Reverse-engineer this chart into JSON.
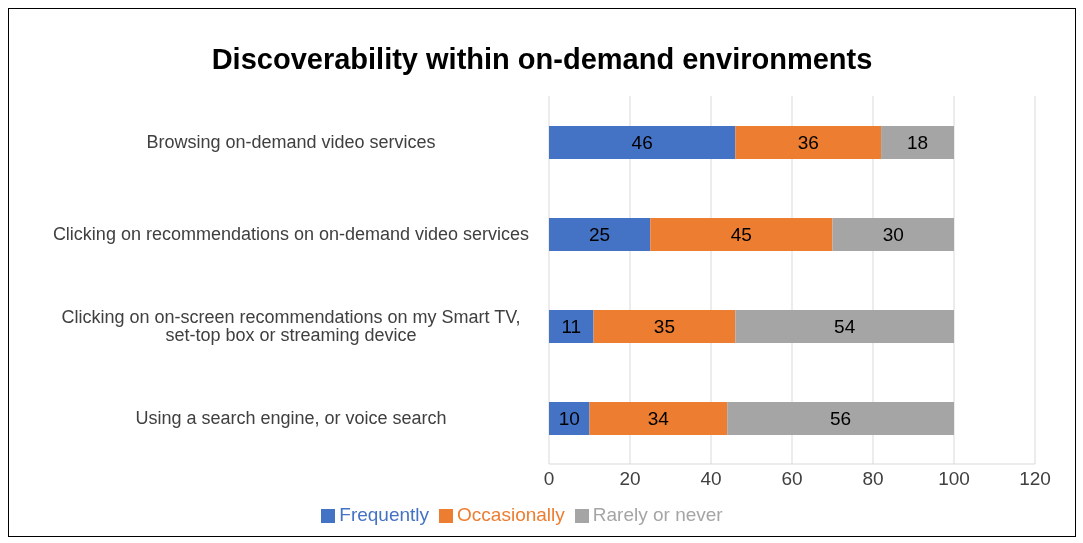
{
  "chart_data": {
    "type": "bar",
    "title": "Discoverability within on-demand environments",
    "orientation": "horizontal",
    "stacked": true,
    "categories": [
      "Browsing on-demand video services",
      "Clicking on recommendations on on-demand video services",
      "Clicking on on-screen recommendations on my Smart TV, set-top box or streaming device",
      "Using a search engine, or voice search"
    ],
    "series": [
      {
        "name": "Frequently",
        "color": "#4472c4",
        "values": [
          46,
          25,
          11,
          10
        ]
      },
      {
        "name": "Occasionally",
        "color": "#ed7d31",
        "values": [
          36,
          45,
          35,
          34
        ]
      },
      {
        "name": "Rarely or never",
        "color": "#a5a5a5",
        "values": [
          18,
          30,
          54,
          56
        ]
      }
    ],
    "xlim": [
      0,
      120
    ],
    "xticks": [
      0,
      20,
      40,
      60,
      80,
      100,
      120
    ],
    "grid": "x",
    "legend": "bottom",
    "data_labels": true
  }
}
